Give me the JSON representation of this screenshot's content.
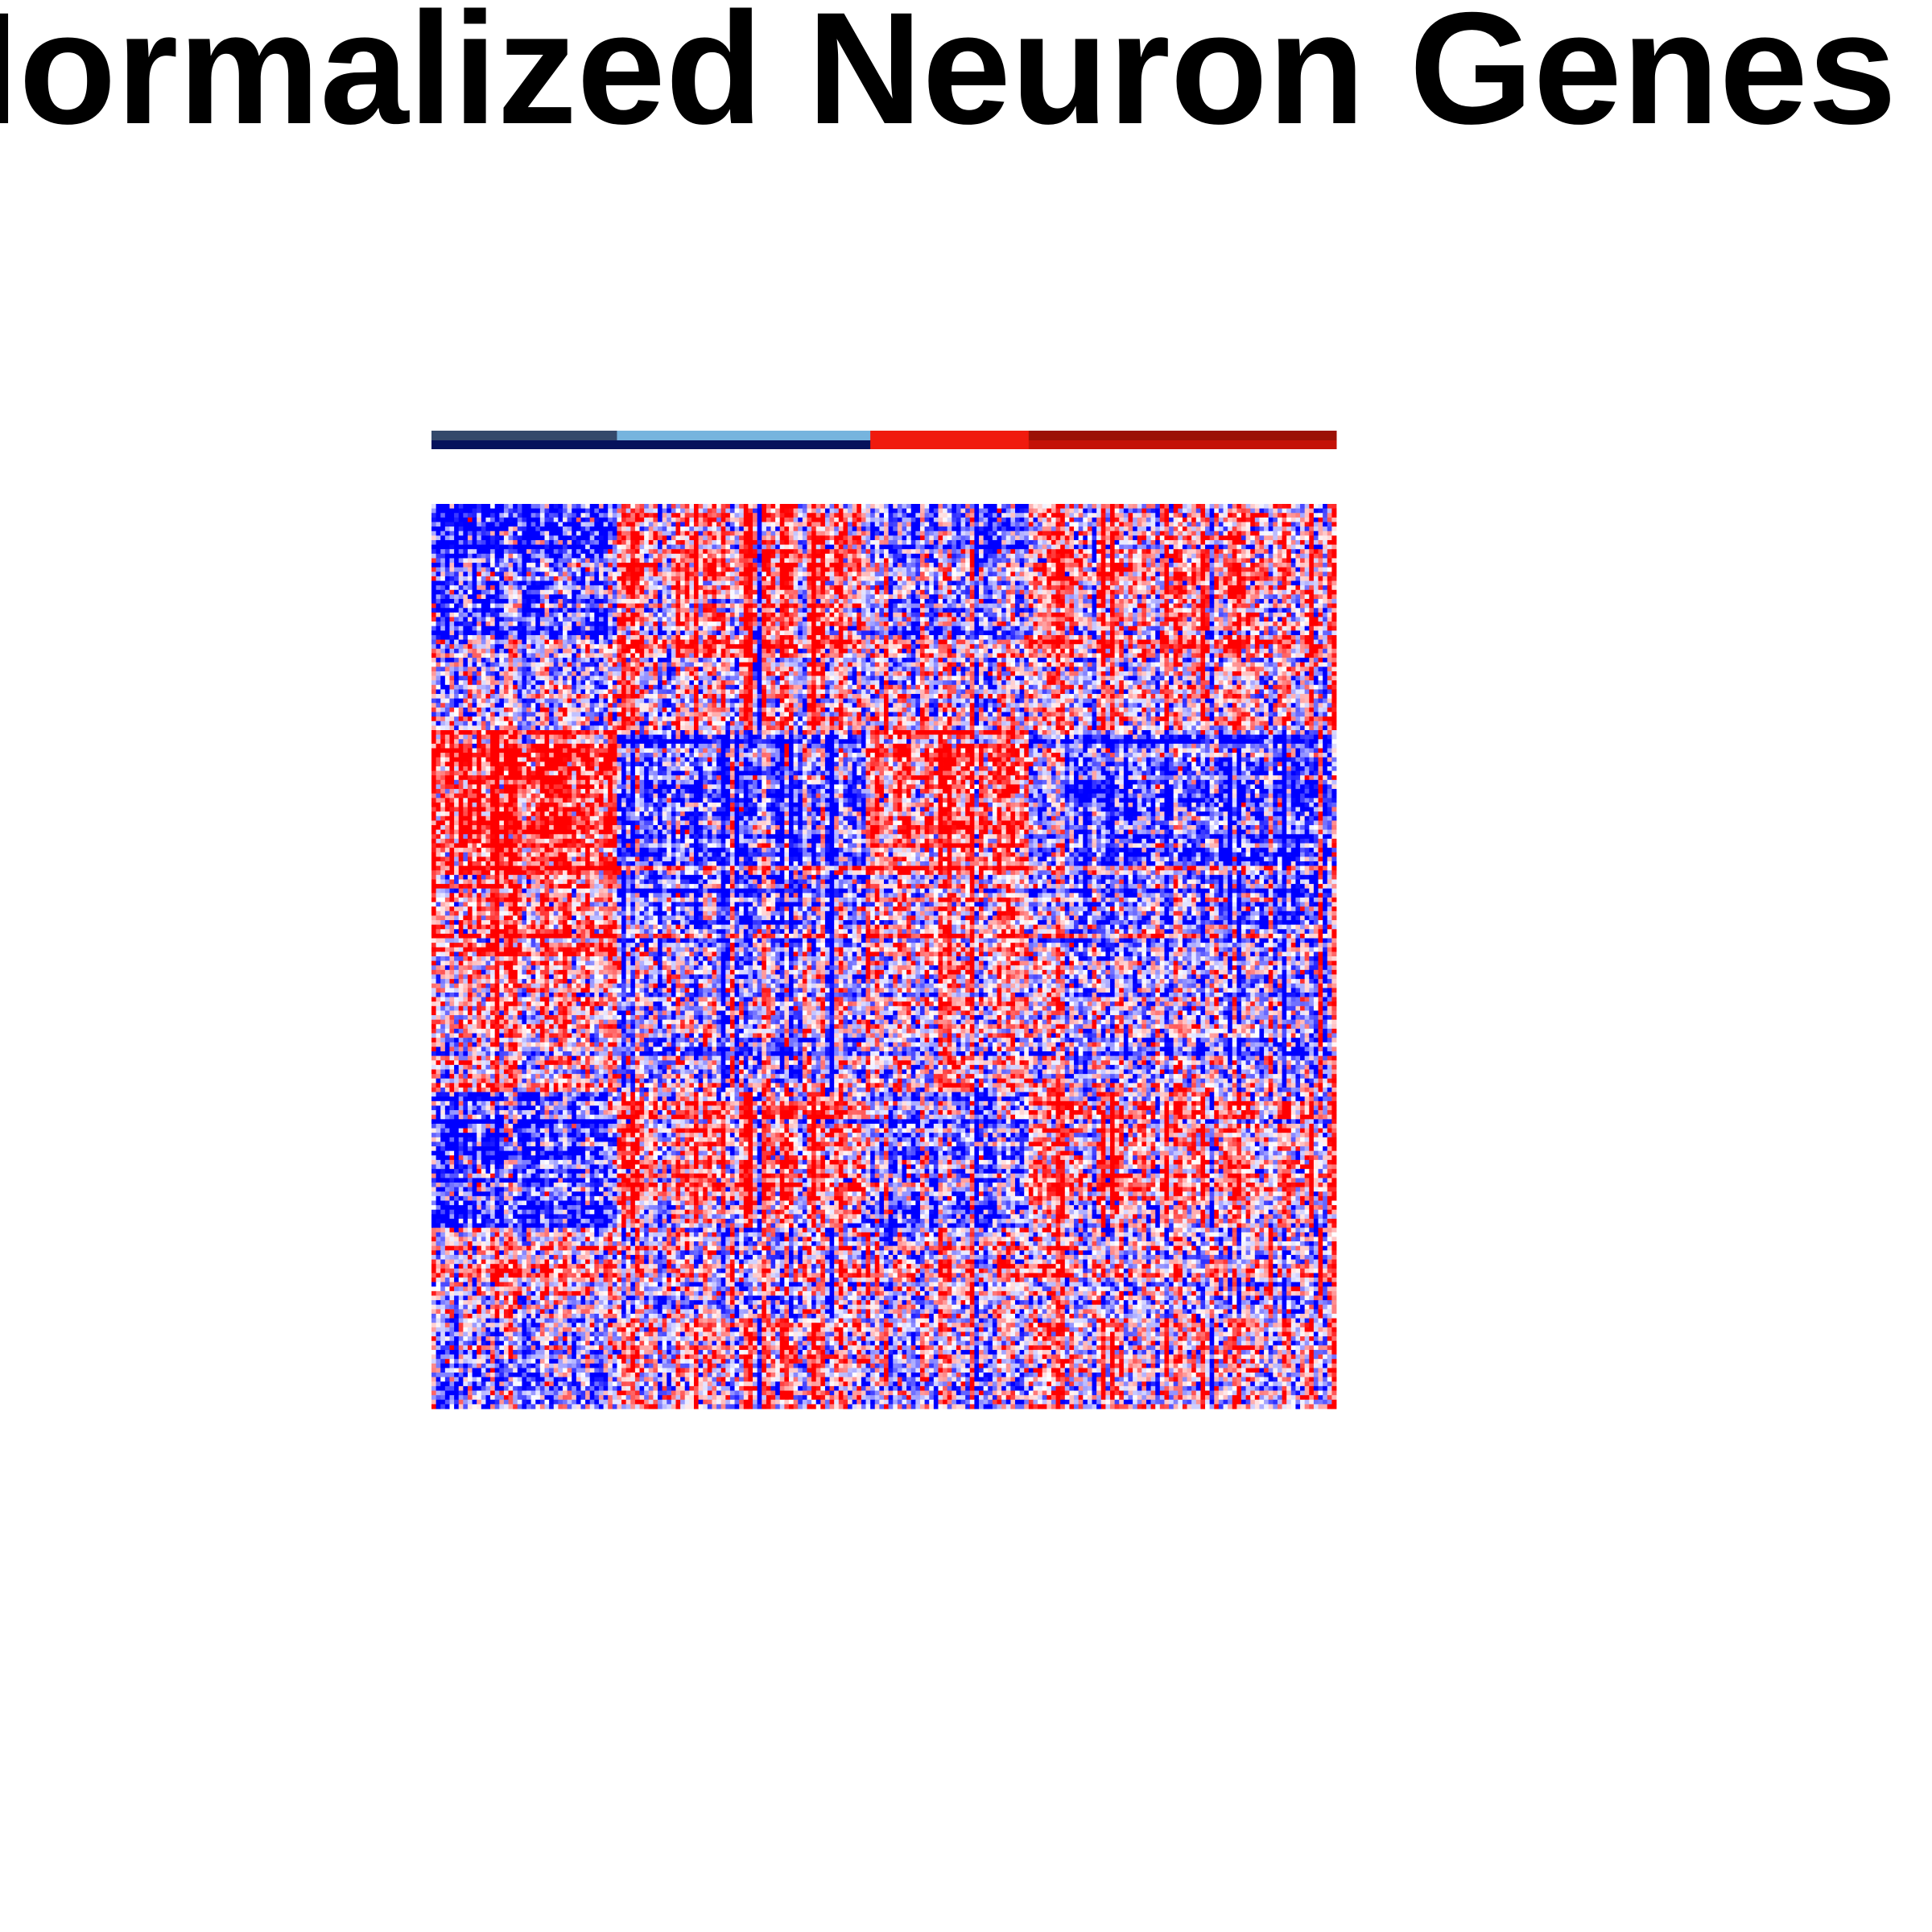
{
  "title": "Normalized Neuron Genes",
  "chart_data": {
    "type": "heatmap",
    "title": "Normalized Neuron Genes",
    "n_rows": 200,
    "n_cols": 200,
    "color_scale": {
      "low": "#0000ff",
      "mid": "#ffffff",
      "high": "#ff0000"
    },
    "column_groups": [
      {
        "count": 41,
        "color_top": "#34496b",
        "color_bottom": "#06125c"
      },
      {
        "count": 56,
        "color_top": "#76b4de",
        "color_bottom": "#06125c"
      },
      {
        "count": 35,
        "color_top": "#f01a0e",
        "color_bottom": "#f01a0e"
      },
      {
        "count": 68,
        "color_top": "#9b1106",
        "color_bottom": "#c41207"
      }
    ],
    "row_blocks": [
      {
        "start": 0,
        "end": 12,
        "group_effect": [
          -0.8,
          0.35,
          -0.5,
          0.3
        ]
      },
      {
        "start": 12,
        "end": 32,
        "group_effect": [
          -0.55,
          0.3,
          -0.35,
          0.3
        ]
      },
      {
        "start": 32,
        "end": 50,
        "group_effect": [
          -0.15,
          0.05,
          -0.1,
          0.05
        ]
      },
      {
        "start": 50,
        "end": 80,
        "group_effect": [
          0.95,
          -0.55,
          0.75,
          -0.55
        ]
      },
      {
        "start": 80,
        "end": 100,
        "group_effect": [
          0.55,
          -0.4,
          0.4,
          -0.35
        ]
      },
      {
        "start": 100,
        "end": 130,
        "group_effect": [
          0.25,
          -0.2,
          0.2,
          -0.15
        ]
      },
      {
        "start": 130,
        "end": 160,
        "group_effect": [
          -0.7,
          0.35,
          -0.45,
          0.3
        ]
      },
      {
        "start": 160,
        "end": 180,
        "group_effect": [
          0.2,
          -0.1,
          0.1,
          -0.05
        ]
      },
      {
        "start": 180,
        "end": 200,
        "group_effect": [
          -0.3,
          0.15,
          -0.15,
          0.15
        ]
      }
    ]
  }
}
